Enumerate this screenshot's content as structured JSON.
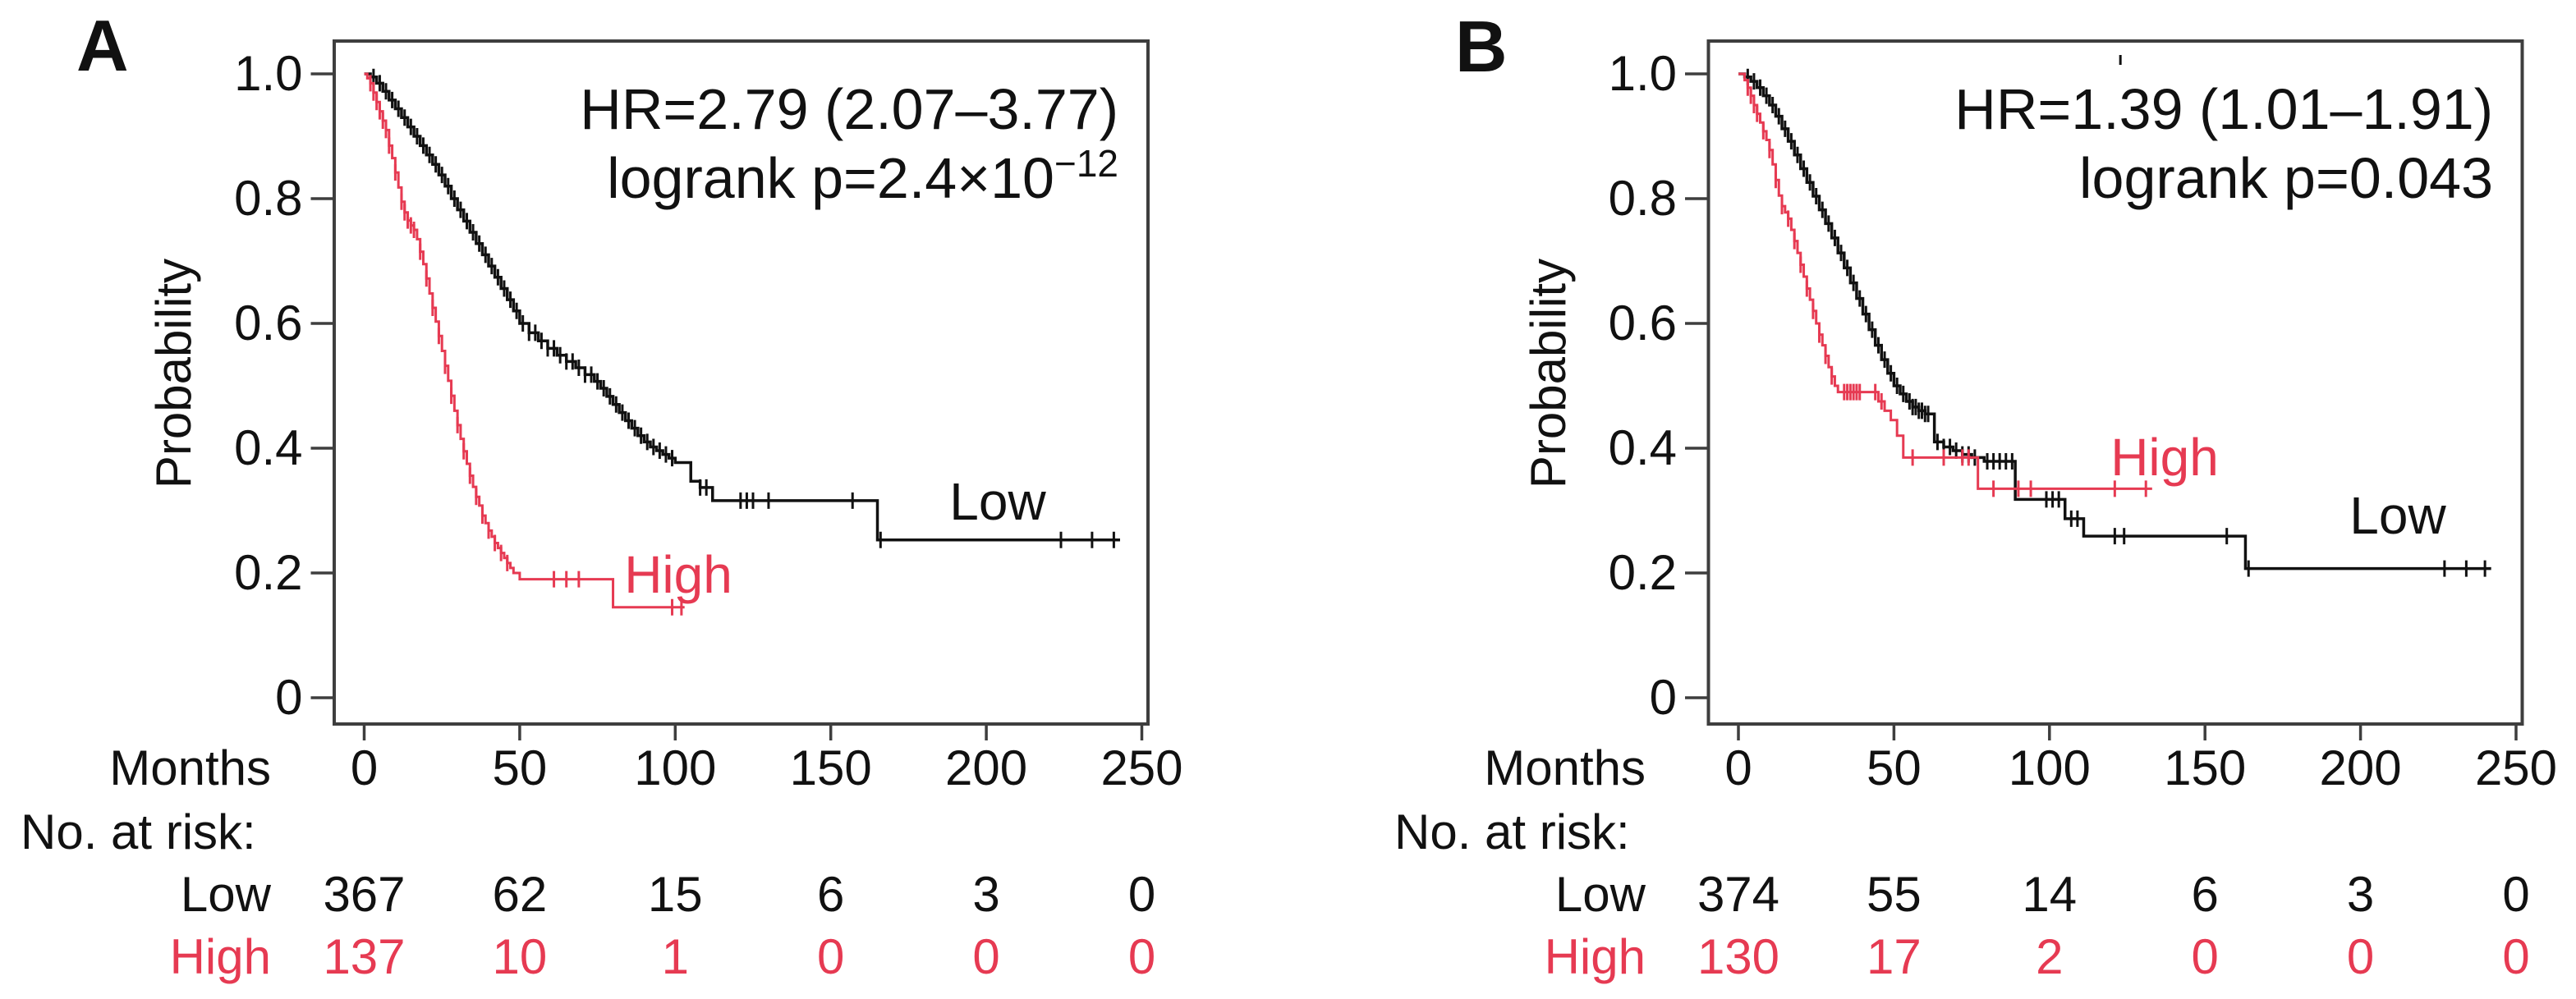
{
  "figure": {
    "background": "#ffffff",
    "colors": {
      "black": "#111111",
      "red": "#e63a52",
      "axis": "#3e3e3e"
    }
  },
  "chart_data": [
    {
      "type": "line",
      "panel": "A",
      "subtype": "kaplan-meier",
      "xlabel": "Months",
      "ylabel": "Probability",
      "xlim": [
        0,
        250
      ],
      "ylim": [
        0,
        1
      ],
      "grid": false,
      "x_ticks": [
        0,
        50,
        100,
        150,
        200,
        250
      ],
      "y_ticks": [
        1.0,
        0.8,
        0.6,
        0.4,
        0.2,
        0
      ],
      "y_tick_labels": [
        "1.0",
        "0.8",
        "0.6",
        "0.4",
        "0.2",
        "0"
      ],
      "annotation": {
        "line1": "HR=2.79 (2.07–3.77)",
        "line2_main": "logrank p=2.4×10",
        "line2_sup": "−12"
      },
      "series": [
        {
          "name": "Low",
          "color": "#111111",
          "steps": [
            [
              0,
              1.0
            ],
            [
              2,
              0.995
            ],
            [
              4,
              0.985
            ],
            [
              6,
              0.972
            ],
            [
              8,
              0.958
            ],
            [
              10,
              0.944
            ],
            [
              12,
              0.93
            ],
            [
              14,
              0.915
            ],
            [
              16,
              0.9
            ],
            [
              18,
              0.885
            ],
            [
              20,
              0.87
            ],
            [
              22,
              0.855
            ],
            [
              24,
              0.838
            ],
            [
              26,
              0.82
            ],
            [
              28,
              0.8
            ],
            [
              30,
              0.782
            ],
            [
              32,
              0.764
            ],
            [
              34,
              0.746
            ],
            [
              36,
              0.728
            ],
            [
              38,
              0.71
            ],
            [
              40,
              0.692
            ],
            [
              42,
              0.674
            ],
            [
              44,
              0.656
            ],
            [
              46,
              0.638
            ],
            [
              48,
              0.62
            ],
            [
              50,
              0.6
            ],
            [
              53,
              0.585
            ],
            [
              56,
              0.572
            ],
            [
              59,
              0.56
            ],
            [
              62,
              0.549
            ],
            [
              65,
              0.539
            ],
            [
              68,
              0.529
            ],
            [
              71,
              0.518
            ],
            [
              74,
              0.507
            ],
            [
              76,
              0.496
            ],
            [
              78,
              0.483
            ],
            [
              80,
              0.47
            ],
            [
              82,
              0.457
            ],
            [
              84,
              0.444
            ],
            [
              86,
              0.432
            ],
            [
              88,
              0.42
            ],
            [
              90,
              0.41
            ],
            [
              92,
              0.402
            ],
            [
              94,
              0.396
            ],
            [
              96,
              0.39
            ],
            [
              98,
              0.384
            ],
            [
              100,
              0.377
            ],
            [
              105,
              0.347
            ],
            [
              108,
              0.337
            ],
            [
              112,
              0.316
            ],
            [
              165,
              0.253
            ],
            [
              243,
              0.253
            ]
          ],
          "censors": [
            3,
            5,
            7,
            9,
            11,
            13,
            15,
            17,
            19,
            21,
            23,
            25,
            27,
            29,
            31,
            33,
            35,
            37,
            39,
            41,
            43,
            45,
            47,
            49,
            51,
            53,
            55,
            57,
            59,
            61,
            63,
            65,
            67,
            69,
            71,
            73,
            75,
            77,
            79,
            81,
            83,
            85,
            87,
            89,
            91,
            93,
            95,
            97,
            99,
            108,
            110,
            121,
            123,
            125,
            130,
            157,
            166,
            224,
            234,
            241
          ]
        },
        {
          "name": "High",
          "color": "#e63a52",
          "steps": [
            [
              0,
              1.0
            ],
            [
              1,
              0.993
            ],
            [
              2,
              0.985
            ],
            [
              3,
              0.97
            ],
            [
              4,
              0.955
            ],
            [
              5,
              0.94
            ],
            [
              6,
              0.925
            ],
            [
              7,
              0.91
            ],
            [
              8,
              0.885
            ],
            [
              9,
              0.865
            ],
            [
              10,
              0.842
            ],
            [
              11,
              0.818
            ],
            [
              12,
              0.795
            ],
            [
              13,
              0.778
            ],
            [
              14,
              0.765
            ],
            [
              15,
              0.757
            ],
            [
              16,
              0.75
            ],
            [
              17,
              0.735
            ],
            [
              18,
              0.715
            ],
            [
              19,
              0.695
            ],
            [
              20,
              0.672
            ],
            [
              21,
              0.648
            ],
            [
              22,
              0.625
            ],
            [
              23,
              0.603
            ],
            [
              24,
              0.58
            ],
            [
              25,
              0.556
            ],
            [
              26,
              0.532
            ],
            [
              27,
              0.508
            ],
            [
              28,
              0.484
            ],
            [
              29,
              0.46
            ],
            [
              30,
              0.437
            ],
            [
              31,
              0.415
            ],
            [
              32,
              0.395
            ],
            [
              33,
              0.375
            ],
            [
              34,
              0.356
            ],
            [
              35,
              0.338
            ],
            [
              36,
              0.322
            ],
            [
              37,
              0.308
            ],
            [
              38,
              0.292
            ],
            [
              39,
              0.28
            ],
            [
              40,
              0.268
            ],
            [
              41,
              0.258
            ],
            [
              42,
              0.248
            ],
            [
              43,
              0.24
            ],
            [
              44,
              0.232
            ],
            [
              45,
              0.224
            ],
            [
              46,
              0.216
            ],
            [
              47,
              0.208
            ],
            [
              48,
              0.2
            ],
            [
              50,
              0.19
            ],
            [
              80,
              0.145
            ],
            [
              103,
              0.145
            ]
          ],
          "censors": [
            2,
            3,
            4,
            5,
            6,
            7,
            8,
            10,
            12,
            13,
            14,
            15,
            16,
            18,
            20,
            22,
            24,
            26,
            28,
            30,
            32,
            34,
            36,
            38,
            40,
            42,
            44,
            46,
            61,
            65,
            69,
            99,
            102
          ]
        }
      ],
      "risk_table": {
        "header": "No. at risk:",
        "rows": [
          {
            "label": "Low",
            "color": "#111111",
            "values": [
              367,
              62,
              15,
              6,
              3,
              0
            ]
          },
          {
            "label": "High",
            "color": "#e63a52",
            "values": [
              137,
              10,
              1,
              0,
              0,
              0
            ]
          }
        ]
      }
    },
    {
      "type": "line",
      "panel": "B",
      "subtype": "kaplan-meier",
      "xlabel": "Months",
      "ylabel": "Probability",
      "xlim": [
        0,
        250
      ],
      "ylim": [
        0,
        1
      ],
      "grid": false,
      "x_ticks": [
        0,
        50,
        100,
        150,
        200,
        250
      ],
      "y_ticks": [
        1.0,
        0.8,
        0.6,
        0.4,
        0.2,
        0
      ],
      "y_tick_labels": [
        "1.0",
        "0.8",
        "0.6",
        "0.4",
        "0.2",
        "0"
      ],
      "annotation": {
        "line1": "HR=1.39 (1.01–1.91)",
        "line2_main": "logrank p=0.043",
        "line2_sup": ""
      },
      "stray_tick": {
        "month": 122.8,
        "note": "small stray mark above curves near top of plot"
      },
      "series": [
        {
          "name": "Low",
          "color": "#111111",
          "steps": [
            [
              0,
              1.0
            ],
            [
              2,
              0.995
            ],
            [
              4,
              0.988
            ],
            [
              6,
              0.978
            ],
            [
              8,
              0.965
            ],
            [
              10,
              0.95
            ],
            [
              12,
              0.932
            ],
            [
              14,
              0.912
            ],
            [
              16,
              0.892
            ],
            [
              18,
              0.87
            ],
            [
              20,
              0.848
            ],
            [
              22,
              0.826
            ],
            [
              24,
              0.804
            ],
            [
              26,
              0.782
            ],
            [
              28,
              0.76
            ],
            [
              30,
              0.737
            ],
            [
              32,
              0.713
            ],
            [
              34,
              0.689
            ],
            [
              36,
              0.665
            ],
            [
              38,
              0.64
            ],
            [
              40,
              0.615
            ],
            [
              42,
              0.59
            ],
            [
              44,
              0.565
            ],
            [
              46,
              0.542
            ],
            [
              48,
              0.52
            ],
            [
              50,
              0.5
            ],
            [
              52,
              0.487
            ],
            [
              54,
              0.475
            ],
            [
              56,
              0.466
            ],
            [
              58,
              0.46
            ],
            [
              60,
              0.455
            ],
            [
              63,
              0.41
            ],
            [
              66,
              0.402
            ],
            [
              69,
              0.396
            ],
            [
              72,
              0.39
            ],
            [
              75,
              0.385
            ],
            [
              79,
              0.379
            ],
            [
              89,
              0.318
            ],
            [
              105,
              0.287
            ],
            [
              111,
              0.259
            ],
            [
              163,
              0.207
            ],
            [
              242,
              0.207
            ]
          ],
          "censors": [
            3,
            5,
            7,
            9,
            11,
            13,
            15,
            17,
            19,
            21,
            23,
            25,
            27,
            29,
            31,
            33,
            35,
            37,
            39,
            41,
            43,
            45,
            47,
            49,
            51,
            53,
            55,
            56,
            57,
            58,
            59,
            60,
            61,
            64,
            66,
            68,
            70,
            72,
            74,
            76,
            80,
            82,
            84,
            86,
            88,
            99,
            101,
            103,
            107,
            109,
            121,
            124,
            157,
            164,
            227,
            234,
            240
          ]
        },
        {
          "name": "High",
          "color": "#e63a52",
          "steps": [
            [
              0,
              1.0
            ],
            [
              2,
              0.99
            ],
            [
              3,
              0.978
            ],
            [
              4,
              0.965
            ],
            [
              5,
              0.95
            ],
            [
              6,
              0.936
            ],
            [
              7,
              0.922
            ],
            [
              8,
              0.908
            ],
            [
              9,
              0.894
            ],
            [
              10,
              0.878
            ],
            [
              11,
              0.855
            ],
            [
              12,
              0.83
            ],
            [
              13,
              0.805
            ],
            [
              14,
              0.788
            ],
            [
              15,
              0.778
            ],
            [
              16,
              0.768
            ],
            [
              17,
              0.75
            ],
            [
              18,
              0.732
            ],
            [
              19,
              0.713
            ],
            [
              20,
              0.694
            ],
            [
              21,
              0.675
            ],
            [
              22,
              0.656
            ],
            [
              23,
              0.638
            ],
            [
              24,
              0.62
            ],
            [
              25,
              0.6
            ],
            [
              26,
              0.582
            ],
            [
              27,
              0.565
            ],
            [
              28,
              0.548
            ],
            [
              29,
              0.53
            ],
            [
              30,
              0.515
            ],
            [
              31,
              0.5
            ],
            [
              32,
              0.49
            ],
            [
              45,
              0.475
            ],
            [
              47,
              0.46
            ],
            [
              49,
              0.445
            ],
            [
              51,
              0.42
            ],
            [
              53,
              0.385
            ],
            [
              77,
              0.335
            ],
            [
              133,
              0.335
            ]
          ],
          "censors": [
            3,
            4,
            5,
            6,
            8,
            10,
            12,
            14,
            16,
            18,
            20,
            22,
            24,
            26,
            28,
            30,
            34,
            35,
            36,
            37,
            38,
            39,
            44,
            46,
            56,
            66,
            72,
            74,
            82,
            90,
            94,
            121,
            131
          ]
        }
      ],
      "risk_table": {
        "header": "No. at risk:",
        "rows": [
          {
            "label": "Low",
            "color": "#111111",
            "values": [
              374,
              55,
              14,
              6,
              3,
              0
            ]
          },
          {
            "label": "High",
            "color": "#e63a52",
            "values": [
              130,
              17,
              2,
              0,
              0,
              0
            ]
          }
        ]
      }
    }
  ]
}
